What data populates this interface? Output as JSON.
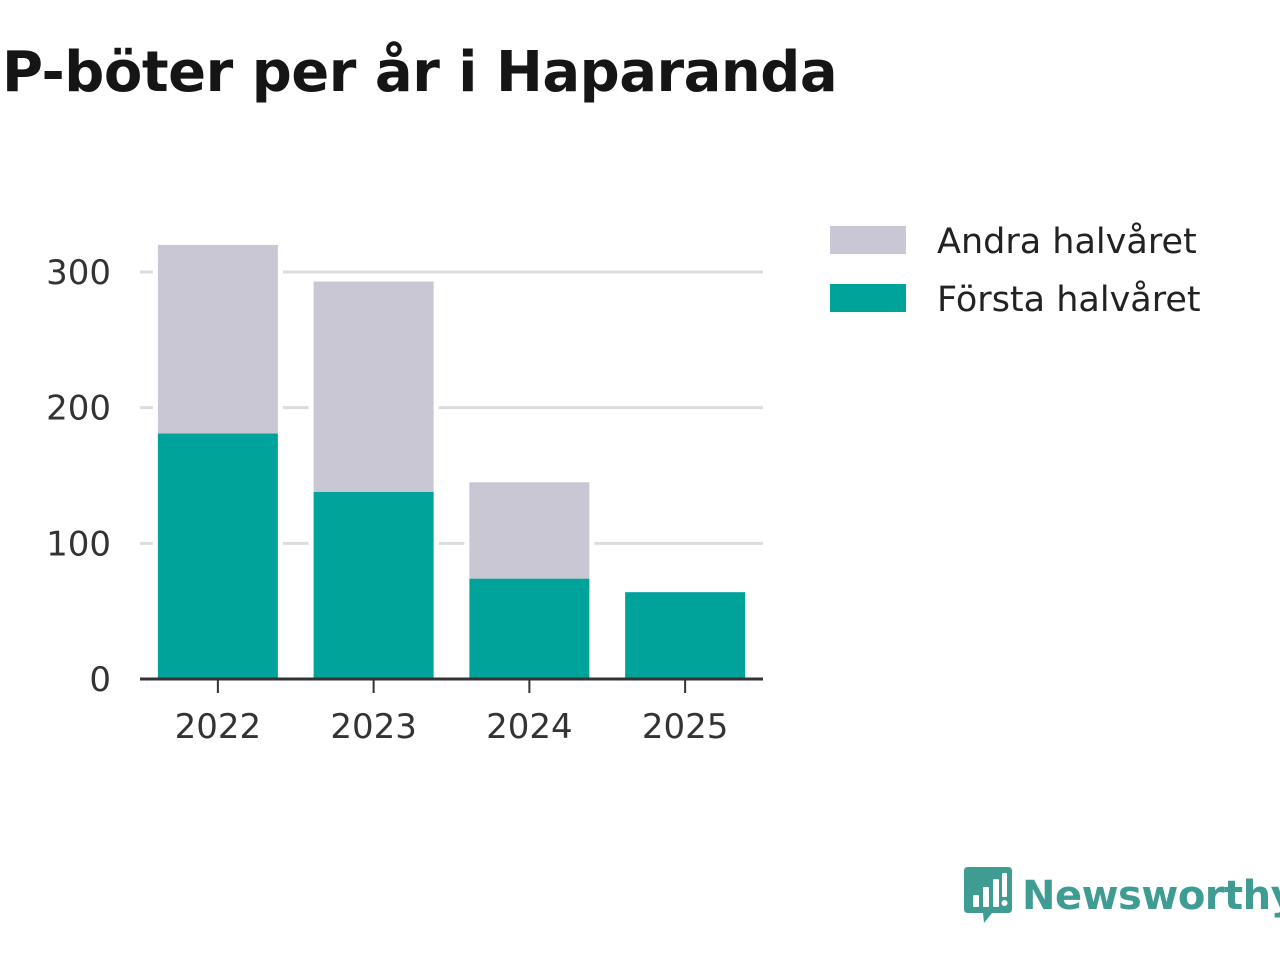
{
  "chart_data": {
    "type": "bar",
    "stacked": true,
    "title": "P-böter per år i Haparanda",
    "categories": [
      "2022",
      "2023",
      "2024",
      "2025"
    ],
    "series": [
      {
        "name": "Första halvåret",
        "values": [
          181,
          138,
          74,
          64
        ],
        "color": "#00a39a"
      },
      {
        "name": "Andra halvåret",
        "values": [
          139,
          155,
          71,
          0
        ],
        "color": "#c8c7d3"
      }
    ],
    "legend_order": [
      "Andra halvåret",
      "Första halvåret"
    ],
    "xlabel": "",
    "ylabel": "",
    "ylim": [
      0,
      330
    ],
    "yticks": [
      0,
      100,
      200,
      300
    ],
    "grid": true,
    "legend_position": "right"
  },
  "branding": {
    "logo_text": "Newsworthy",
    "logo_icon": "newsworthy-chart-bubble-icon",
    "logo_color": "#3f9c92"
  }
}
